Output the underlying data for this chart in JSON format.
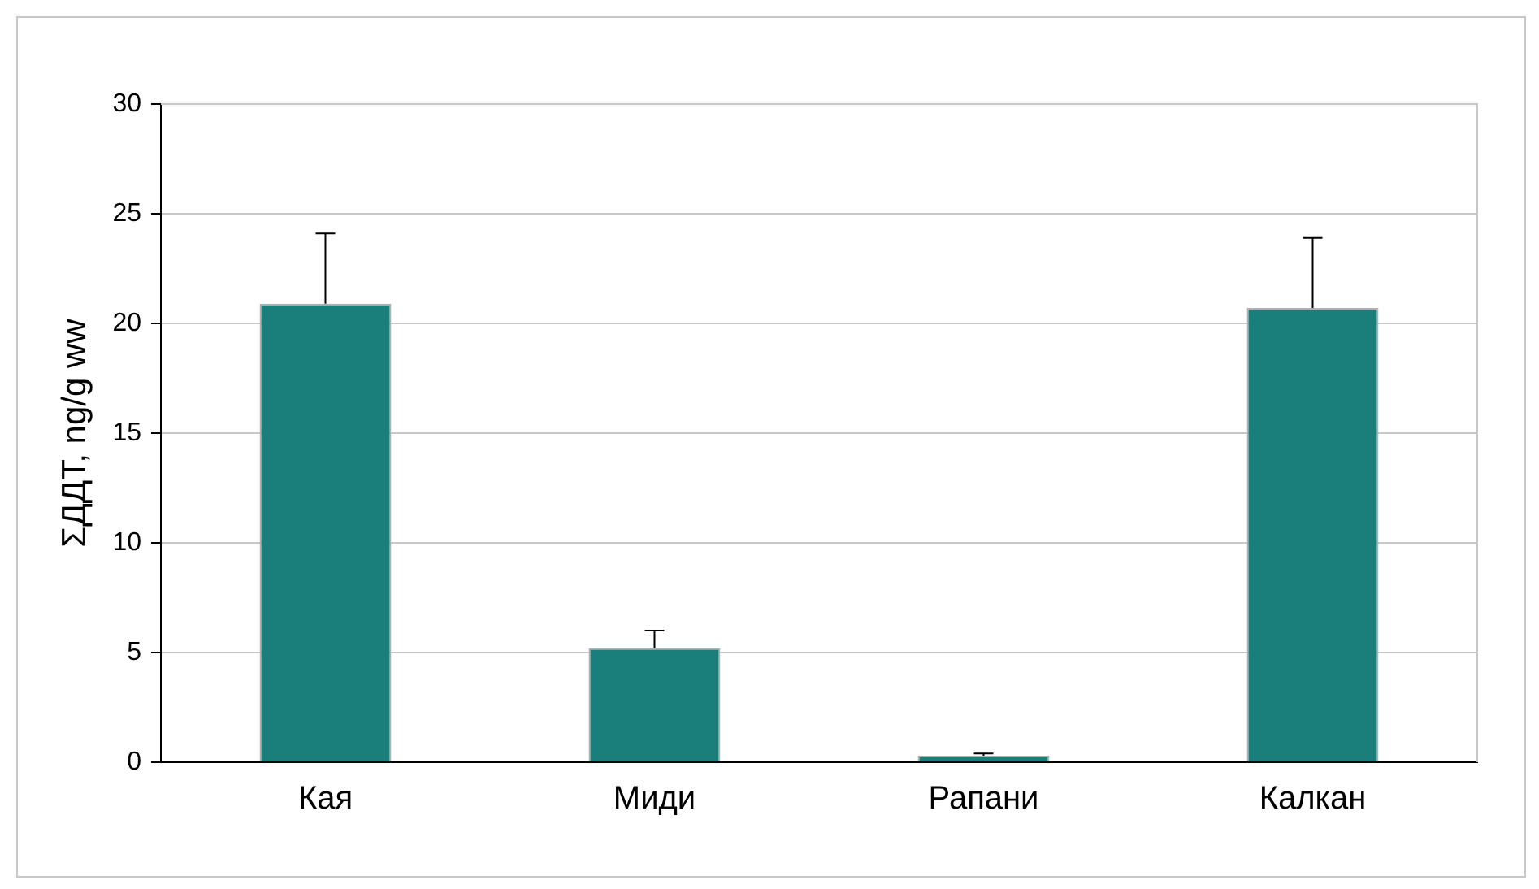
{
  "chart_data": {
    "type": "bar",
    "ylabel": "ΣДДТ, ng/g ww",
    "categories": [
      "Кая",
      "Миди",
      "Рапани",
      "Калкан"
    ],
    "values": [
      20.9,
      5.2,
      0.3,
      20.7
    ],
    "errors": [
      [
        20.9,
        24.1
      ],
      [
        5.2,
        6.0
      ],
      [
        0.3,
        0.4
      ],
      [
        20.7,
        23.9
      ]
    ],
    "color": "#1a7f7a",
    "ylim": [
      0,
      30
    ],
    "yticks": [
      0,
      5,
      10,
      15,
      20,
      25,
      30
    ],
    "grid": "y",
    "legend": false
  }
}
